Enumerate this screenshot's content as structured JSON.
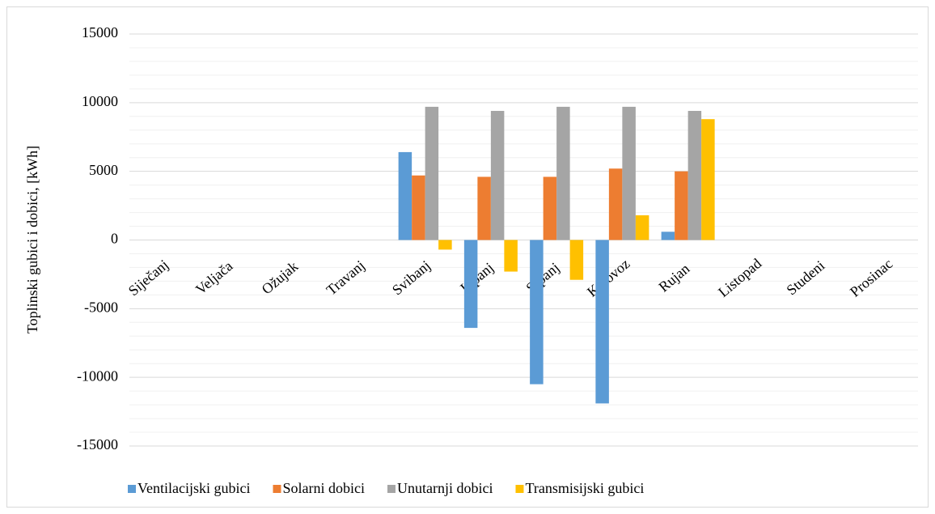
{
  "chart_data": {
    "type": "bar",
    "y_label": "Toplinski gubici i dobici, [kWh]",
    "categories": [
      "Siječanj",
      "Veljača",
      "Ožujak",
      "Travanj",
      "Svibanj",
      "Lipanj",
      "Srpanj",
      "Kolovoz",
      "Rujan",
      "Listopad",
      "Studeni",
      "Prosinac"
    ],
    "series": [
      {
        "name": "Ventilacijski gubici",
        "color": "#5b9bd5",
        "values": [
          null,
          null,
          null,
          null,
          6400,
          -6400,
          -10500,
          -11900,
          600,
          null,
          null,
          null
        ]
      },
      {
        "name": "Solarni dobici",
        "color": "#ed7d31",
        "values": [
          null,
          null,
          null,
          null,
          4700,
          4600,
          4600,
          5200,
          5000,
          null,
          null,
          null
        ]
      },
      {
        "name": "Unutarnji dobici",
        "color": "#a5a5a5",
        "values": [
          null,
          null,
          null,
          null,
          9700,
          9400,
          9700,
          9700,
          9400,
          null,
          null,
          null
        ]
      },
      {
        "name": "Transmisijski gubici",
        "color": "#ffc000",
        "values": [
          null,
          null,
          null,
          null,
          -700,
          -2300,
          -2900,
          1800,
          8800,
          null,
          null,
          null
        ]
      }
    ],
    "ylim": [
      -15000,
      15000
    ],
    "yticks": [
      -15000,
      -10000,
      -5000,
      0,
      5000,
      10000,
      15000
    ],
    "grid": true,
    "minor_grid": true,
    "legend": "bottom"
  }
}
